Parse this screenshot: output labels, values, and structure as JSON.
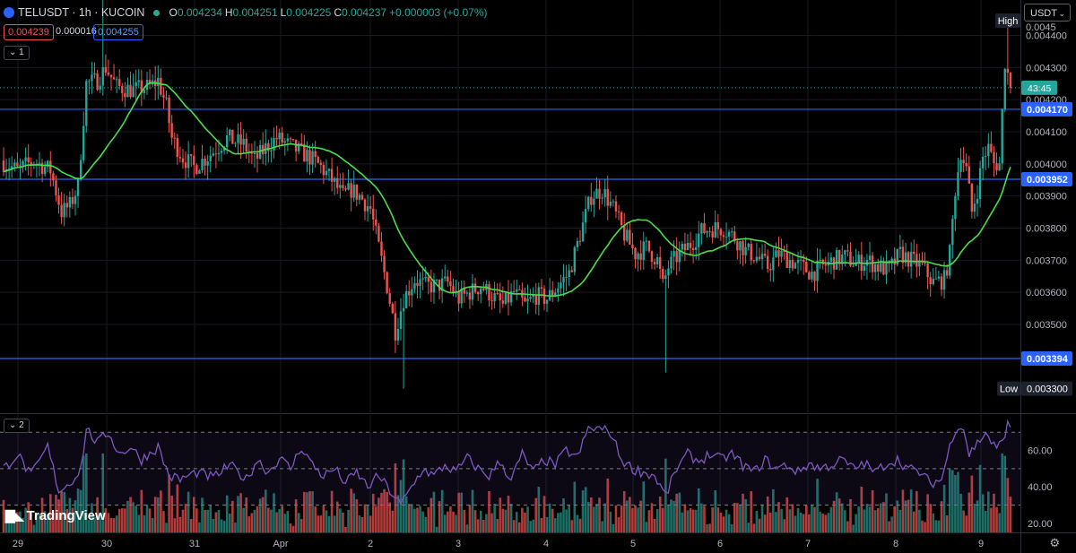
{
  "header": {
    "symbol": "TELUSDT · 1h · KUCOIN",
    "ohlc": [
      {
        "k": "O",
        "v": "0.004234"
      },
      {
        "k": "H",
        "v": "0.004251"
      },
      {
        "k": "L",
        "v": "0.004225"
      },
      {
        "k": "C",
        "v": "0.004237"
      }
    ],
    "change": "+0.000003 (+0.07%)",
    "sell_price": "0.004239",
    "spread": "0.000016",
    "buy_price": "0.004255",
    "main_pane_tag": "1",
    "indicator_pane_tag": "2"
  },
  "currency_select": "USDT",
  "watermark": "TradingView",
  "watermark_icon": "tradingview-logo",
  "colors": {
    "up": "#26a69a",
    "down": "#ef5350",
    "ma": "#4ade4a",
    "hline": "#2962ff",
    "rsi": "#7e57c2"
  },
  "chart_data": {
    "type": "candlestick",
    "price_axis": {
      "ticks": [
        "0.004400",
        "0.004300",
        "0.004200",
        "0.004100",
        "0.004000",
        "0.003900",
        "0.003800",
        "0.003700",
        "0.003600",
        "0.003500",
        "0.003300"
      ],
      "range": [
        0.00326,
        0.00446
      ],
      "partially_hidden_label": "0.0045"
    },
    "time_axis": {
      "labels": [
        "29",
        "30",
        "31",
        "Apr",
        "2",
        "3",
        "4",
        "5",
        "6",
        "7",
        "8",
        "9"
      ]
    },
    "horizontal_lines": [
      {
        "price": 0.00417,
        "label": "0.004170"
      },
      {
        "price": 0.003952,
        "label": "0.003952"
      },
      {
        "price": 0.003394,
        "label": "0.003394"
      }
    ],
    "high_label": "High",
    "low_label": "Low",
    "low_value": "0.003300",
    "current_price": 0.004237,
    "countdown": "43:45",
    "price_path": [
      [
        0,
        0.00401
      ],
      [
        6,
        0.00398
      ],
      [
        12,
        0.00401
      ],
      [
        18,
        0.00398
      ],
      [
        22,
        0.00385
      ],
      [
        25,
        0.00387
      ],
      [
        28,
        0.00393
      ],
      [
        31,
        0.00425
      ],
      [
        35,
        0.00426
      ],
      [
        38,
        0.0043
      ],
      [
        42,
        0.00424
      ],
      [
        48,
        0.00423
      ],
      [
        54,
        0.00424
      ],
      [
        57,
        0.00426
      ],
      [
        60,
        0.00418
      ],
      [
        62,
        0.00408
      ],
      [
        66,
        0.00402
      ],
      [
        70,
        0.00399
      ],
      [
        76,
        0.00403
      ],
      [
        82,
        0.00408
      ],
      [
        88,
        0.00406
      ],
      [
        92,
        0.00401
      ],
      [
        96,
        0.00405
      ],
      [
        100,
        0.00408
      ],
      [
        104,
        0.00406
      ],
      [
        108,
        0.00404
      ],
      [
        112,
        0.00402
      ],
      [
        116,
        0.00399
      ],
      [
        120,
        0.00395
      ],
      [
        124,
        0.0039
      ],
      [
        127,
        0.00392
      ],
      [
        130,
        0.0039
      ],
      [
        134,
        0.00386
      ],
      [
        137,
        0.00374
      ],
      [
        140,
        0.00362
      ],
      [
        143,
        0.00348
      ],
      [
        146,
        0.00358
      ],
      [
        150,
        0.00364
      ],
      [
        154,
        0.00362
      ],
      [
        158,
        0.00362
      ],
      [
        162,
        0.00363
      ],
      [
        166,
        0.00358
      ],
      [
        170,
        0.0036
      ],
      [
        174,
        0.00362
      ],
      [
        178,
        0.00359
      ],
      [
        182,
        0.00356
      ],
      [
        186,
        0.0036
      ],
      [
        190,
        0.00356
      ],
      [
        194,
        0.00359
      ],
      [
        198,
        0.00358
      ],
      [
        202,
        0.00362
      ],
      [
        206,
        0.00366
      ],
      [
        210,
        0.00378
      ],
      [
        214,
        0.0039
      ],
      [
        218,
        0.00392
      ],
      [
        222,
        0.00386
      ],
      [
        226,
        0.00378
      ],
      [
        230,
        0.00372
      ],
      [
        234,
        0.00374
      ],
      [
        238,
        0.0037
      ],
      [
        240,
        0.00362
      ],
      [
        242,
        0.00368
      ],
      [
        246,
        0.00372
      ],
      [
        250,
        0.00375
      ],
      [
        254,
        0.00379
      ],
      [
        258,
        0.0038
      ],
      [
        262,
        0.0038
      ],
      [
        266,
        0.00377
      ],
      [
        270,
        0.00373
      ],
      [
        274,
        0.00371
      ],
      [
        278,
        0.00368
      ],
      [
        282,
        0.00372
      ],
      [
        286,
        0.0037
      ],
      [
        290,
        0.00368
      ],
      [
        294,
        0.00366
      ],
      [
        298,
        0.00368
      ],
      [
        302,
        0.0037
      ],
      [
        306,
        0.00371
      ],
      [
        310,
        0.00369
      ],
      [
        314,
        0.0037
      ],
      [
        318,
        0.00368
      ],
      [
        322,
        0.00367
      ],
      [
        326,
        0.00372
      ],
      [
        330,
        0.0037
      ],
      [
        334,
        0.00368
      ],
      [
        338,
        0.00363
      ],
      [
        342,
        0.00364
      ],
      [
        344,
        0.00372
      ],
      [
        346,
        0.00392
      ],
      [
        348,
        0.00404
      ],
      [
        350,
        0.00398
      ],
      [
        352,
        0.00385
      ],
      [
        354,
        0.00392
      ],
      [
        356,
        0.00402
      ],
      [
        358,
        0.00405
      ],
      [
        360,
        0.004
      ],
      [
        362,
        0.004
      ],
      [
        364,
        0.00432
      ],
      [
        366,
        0.00424
      ]
    ],
    "wick_extremes": [
      [
        36,
        0.00452,
        "high"
      ],
      [
        145,
        0.0033,
        "low"
      ],
      [
        240,
        0.00335,
        "low"
      ],
      [
        364,
        0.00446,
        "high"
      ]
    ],
    "candle_count": 366,
    "rsi": {
      "ticks": [
        "60.00",
        "40.00",
        "20.00"
      ],
      "range": [
        15,
        80
      ],
      "levels": [
        70,
        50,
        30
      ],
      "path": [
        [
          0,
          50
        ],
        [
          5,
          58
        ],
        [
          10,
          46
        ],
        [
          16,
          62
        ],
        [
          20,
          38
        ],
        [
          24,
          42
        ],
        [
          28,
          50
        ],
        [
          30,
          72
        ],
        [
          34,
          64
        ],
        [
          38,
          70
        ],
        [
          42,
          58
        ],
        [
          46,
          62
        ],
        [
          50,
          55
        ],
        [
          56,
          62
        ],
        [
          60,
          46
        ],
        [
          64,
          44
        ],
        [
          70,
          48
        ],
        [
          76,
          45
        ],
        [
          82,
          52
        ],
        [
          88,
          44
        ],
        [
          92,
          55
        ],
        [
          96,
          48
        ],
        [
          100,
          56
        ],
        [
          104,
          50
        ],
        [
          108,
          62
        ],
        [
          112,
          52
        ],
        [
          116,
          46
        ],
        [
          120,
          50
        ],
        [
          124,
          42
        ],
        [
          128,
          48
        ],
        [
          132,
          40
        ],
        [
          136,
          46
        ],
        [
          140,
          38
        ],
        [
          144,
          30
        ],
        [
          148,
          40
        ],
        [
          152,
          50
        ],
        [
          156,
          46
        ],
        [
          160,
          52
        ],
        [
          164,
          48
        ],
        [
          168,
          56
        ],
        [
          172,
          50
        ],
        [
          176,
          46
        ],
        [
          180,
          54
        ],
        [
          184,
          44
        ],
        [
          188,
          58
        ],
        [
          192,
          48
        ],
        [
          196,
          55
        ],
        [
          200,
          52
        ],
        [
          204,
          60
        ],
        [
          208,
          56
        ],
        [
          212,
          72
        ],
        [
          216,
          72
        ],
        [
          220,
          70
        ],
        [
          224,
          55
        ],
        [
          228,
          50
        ],
        [
          232,
          48
        ],
        [
          236,
          46
        ],
        [
          240,
          35
        ],
        [
          244,
          50
        ],
        [
          248,
          58
        ],
        [
          252,
          54
        ],
        [
          256,
          58
        ],
        [
          260,
          55
        ],
        [
          264,
          58
        ],
        [
          268,
          52
        ],
        [
          272,
          48
        ],
        [
          276,
          55
        ],
        [
          280,
          50
        ],
        [
          284,
          52
        ],
        [
          288,
          48
        ],
        [
          292,
          53
        ],
        [
          296,
          50
        ],
        [
          300,
          52
        ],
        [
          304,
          55
        ],
        [
          308,
          50
        ],
        [
          312,
          53
        ],
        [
          316,
          48
        ],
        [
          320,
          53
        ],
        [
          324,
          55
        ],
        [
          328,
          50
        ],
        [
          332,
          48
        ],
        [
          336,
          42
        ],
        [
          340,
          44
        ],
        [
          344,
          68
        ],
        [
          346,
          74
        ],
        [
          348,
          72
        ],
        [
          350,
          58
        ],
        [
          352,
          62
        ],
        [
          356,
          70
        ],
        [
          360,
          60
        ],
        [
          362,
          66
        ],
        [
          364,
          74
        ],
        [
          366,
          68
        ]
      ]
    },
    "volume": {
      "scale": "relative"
    }
  }
}
